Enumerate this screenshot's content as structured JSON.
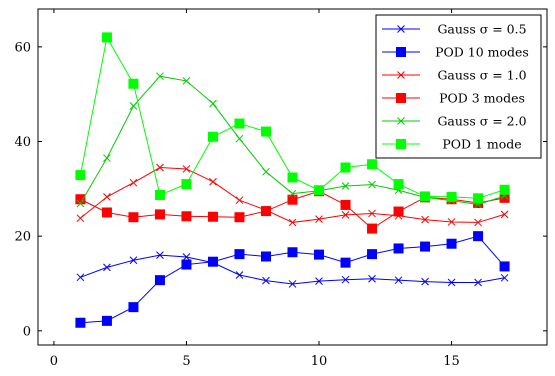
{
  "chart_data": {
    "type": "line",
    "title": "",
    "xlabel": "",
    "ylabel": "",
    "xlim": [
      -0.6,
      18.6
    ],
    "ylim": [
      -3,
      68
    ],
    "xticks": [
      0,
      5,
      10,
      15
    ],
    "yticks": [
      0,
      20,
      40,
      60
    ],
    "grid": false,
    "legend_position": "top-right",
    "x": [
      1,
      2,
      3,
      4,
      5,
      6,
      7,
      8,
      9,
      10,
      11,
      12,
      13,
      14,
      15,
      16,
      17
    ],
    "series": [
      {
        "name": "Gauss σ = 0.5",
        "color": "#0000ff",
        "marker": "cross",
        "values": [
          11.3,
          13.4,
          14.9,
          16.0,
          15.6,
          14.4,
          11.8,
          10.6,
          9.9,
          10.5,
          10.8,
          11.0,
          10.7,
          10.4,
          10.2,
          10.2,
          11.2
        ]
      },
      {
        "name": "POD 10 modes",
        "color": "#0000ff",
        "marker": "square",
        "values": [
          1.7,
          2.1,
          5.0,
          10.7,
          14.0,
          14.6,
          16.2,
          15.7,
          16.6,
          16.1,
          14.4,
          16.2,
          17.4,
          17.8,
          18.4,
          20.0,
          13.6
        ]
      },
      {
        "name": "Gauss σ = 1.0",
        "color": "#ff0000",
        "marker": "cross",
        "values": [
          23.8,
          28.3,
          31.3,
          34.5,
          34.2,
          31.5,
          27.6,
          25.5,
          22.9,
          23.6,
          24.5,
          24.8,
          24.3,
          23.5,
          23.0,
          22.9,
          24.6
        ]
      },
      {
        "name": "POD 3 modes",
        "color": "#ff0000",
        "marker": "square",
        "values": [
          27.8,
          25.0,
          24.0,
          24.6,
          24.2,
          24.1,
          24.0,
          25.3,
          27.7,
          29.5,
          26.6,
          21.6,
          25.2,
          28.2,
          27.8,
          27.0,
          28.1
        ]
      },
      {
        "name": "Gauss σ = 2.0",
        "color": "#00cc00",
        "marker": "cross",
        "values": [
          26.9,
          36.5,
          47.5,
          53.8,
          52.8,
          48.0,
          40.6,
          33.6,
          29.0,
          29.6,
          30.6,
          30.9,
          29.7,
          28.2,
          27.5,
          26.7,
          28.5
        ]
      },
      {
        "name": "POD 1 mode",
        "color": "#00ff00",
        "marker": "square",
        "values": [
          32.9,
          62.0,
          52.2,
          28.7,
          31.0,
          41.0,
          43.8,
          42.1,
          32.4,
          29.7,
          34.5,
          35.2,
          31.0,
          28.4,
          28.3,
          28.0,
          29.8
        ]
      }
    ]
  }
}
